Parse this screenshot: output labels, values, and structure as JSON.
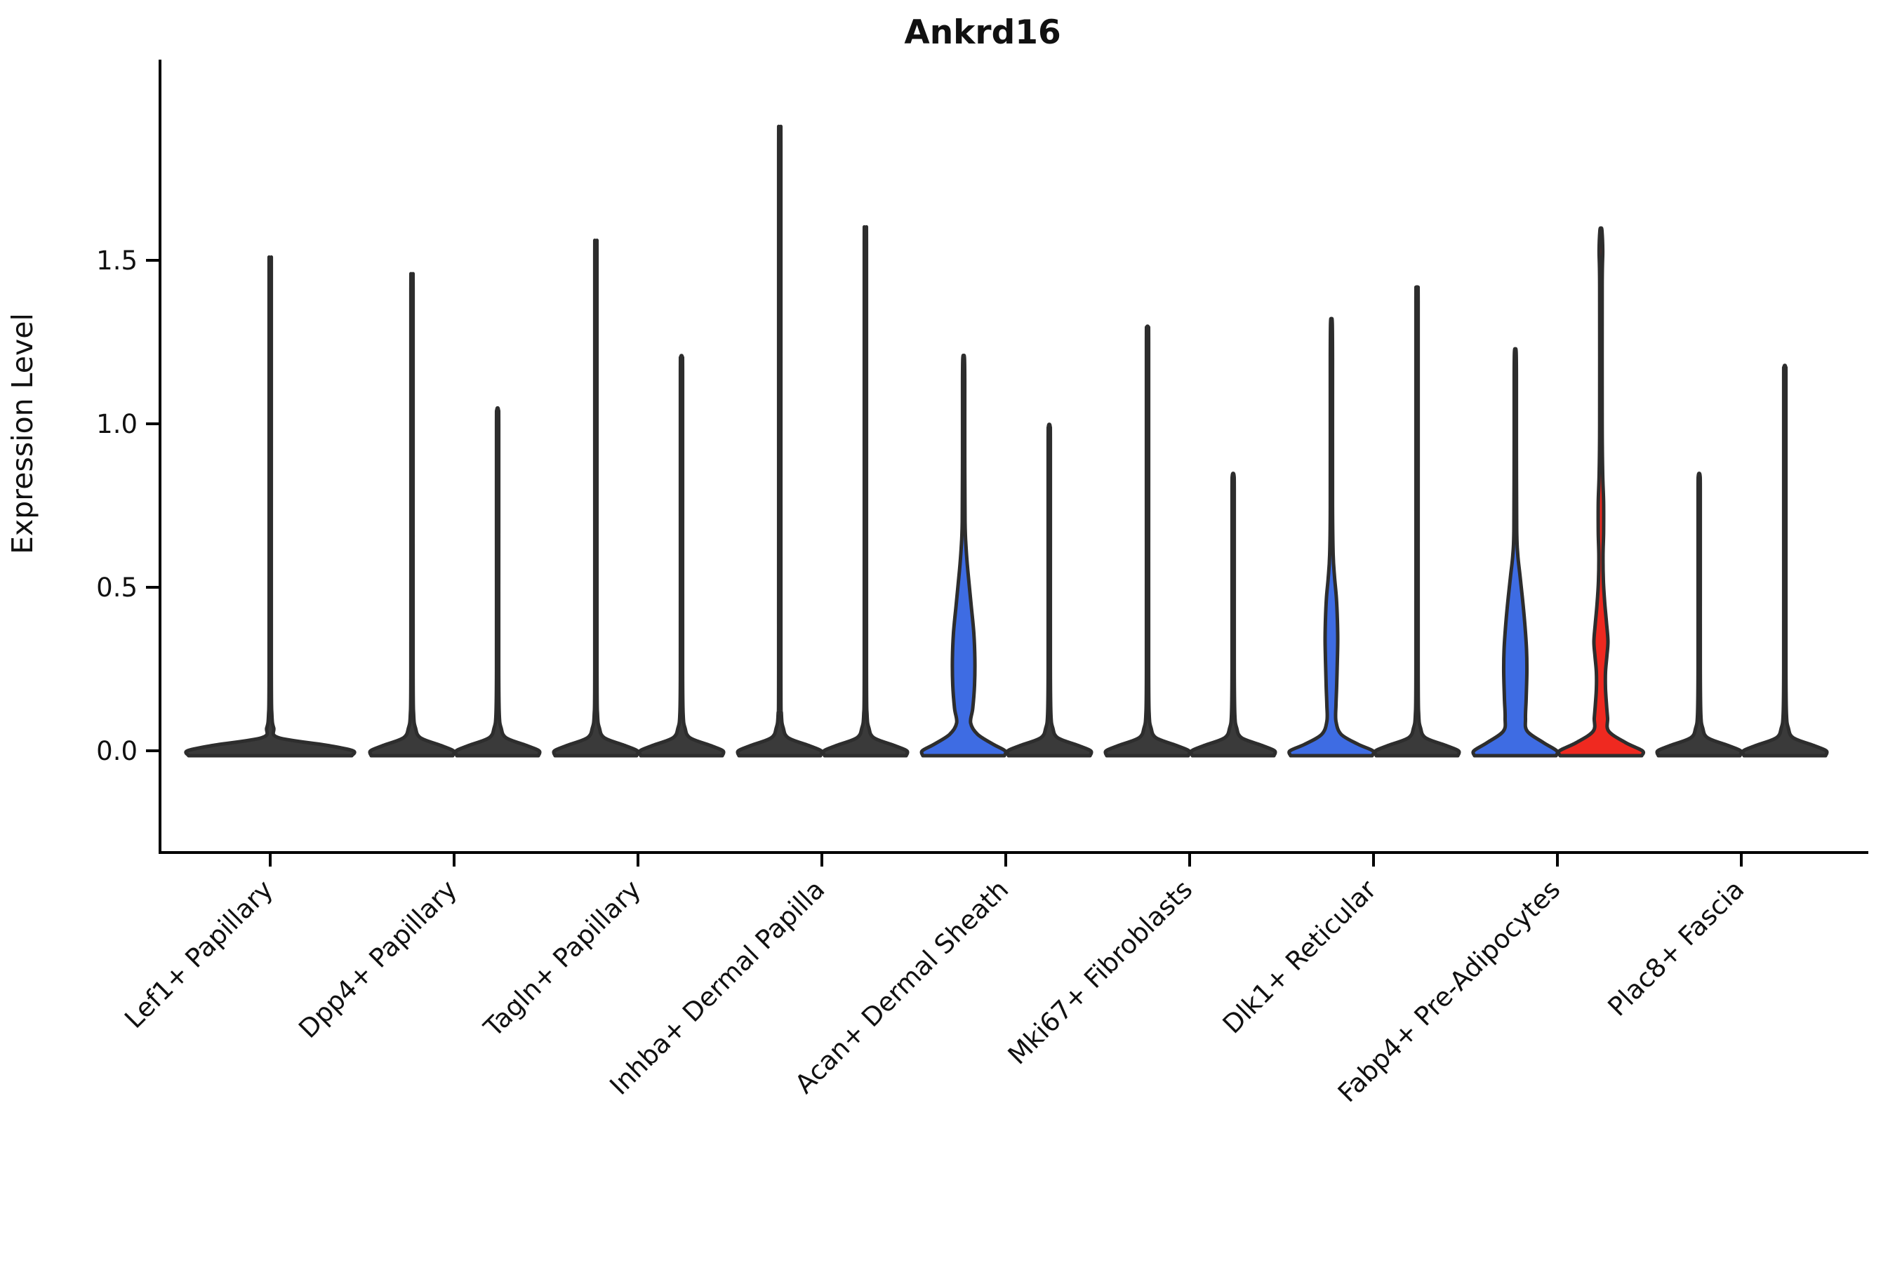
{
  "chart_data": {
    "type": "violin",
    "title": "Ankrd16",
    "xlabel": "",
    "ylabel": "Expression Level",
    "yticks": [
      0.0,
      0.5,
      1.0,
      1.5
    ],
    "ylim": [
      -0.31,
      2.11
    ],
    "grid": false,
    "legend": "none",
    "x_tick_rotation": 45,
    "categories": [
      "Lef1+ Papillary",
      "Dpp4+ Papillary",
      "Tagln+ Papillary",
      "Inhba+ Dermal Papilla",
      "Acan+ Dermal Sheath",
      "Mki67+ Fibroblasts",
      "Dlk1+ Reticular",
      "Fabp4+ Pre-Adipocytes",
      "Plac8+ Fascia"
    ],
    "colors": {
      "highlight_blue": "#3e6ce3",
      "highlight_red": "#ef2920",
      "violin_edge": "#2d2d2d",
      "violin_dark_fill": "#3a3a3a",
      "axis": "#000000"
    },
    "violins": [
      {
        "category": "Lef1+ Papillary",
        "side": "center",
        "fill": "dark",
        "max_expression": 1.5,
        "half_width": 118
      },
      {
        "category": "Dpp4+ Papillary",
        "side": "left",
        "fill": "dark",
        "max_expression": 1.45,
        "half_width": 59
      },
      {
        "category": "Dpp4+ Papillary",
        "side": "right",
        "fill": "dark",
        "max_expression": 1.04,
        "half_width": 59
      },
      {
        "category": "Tagln+ Papillary",
        "side": "left",
        "fill": "dark",
        "max_expression": 1.55,
        "half_width": 59
      },
      {
        "category": "Tagln+ Papillary",
        "side": "right",
        "fill": "dark",
        "max_expression": 1.2,
        "half_width": 59
      },
      {
        "category": "Inhba+ Dermal Papilla",
        "side": "left",
        "fill": "dark",
        "max_expression": 1.89,
        "half_width": 59
      },
      {
        "category": "Inhba+ Dermal Papilla",
        "side": "right",
        "fill": "dark",
        "max_expression": 1.59,
        "half_width": 59
      },
      {
        "category": "Acan+ Dermal Sheath",
        "side": "left",
        "fill": "blue",
        "max_expression": 1.2,
        "half_width": 59,
        "profile": [
          [
            0,
            59
          ],
          [
            0.02,
            42
          ],
          [
            0.05,
            20
          ],
          [
            0.085,
            10
          ],
          [
            0.13,
            13
          ],
          [
            0.2,
            15.5
          ],
          [
            0.28,
            16
          ],
          [
            0.36,
            14.5
          ],
          [
            0.45,
            10.5
          ],
          [
            0.55,
            6
          ],
          [
            0.62,
            3.5
          ],
          [
            0.7,
            2
          ],
          [
            0.9,
            1.6
          ],
          [
            1.13,
            1.6
          ],
          [
            1.2,
            1.2
          ]
        ]
      },
      {
        "category": "Acan+ Dermal Sheath",
        "side": "right",
        "fill": "dark",
        "max_expression": 0.99,
        "half_width": 59
      },
      {
        "category": "Mki67+ Fibroblasts",
        "side": "left",
        "fill": "dark",
        "max_expression": 1.29,
        "half_width": 59
      },
      {
        "category": "Mki67+ Fibroblasts",
        "side": "right",
        "fill": "dark",
        "max_expression": 0.84,
        "half_width": 59
      },
      {
        "category": "Dlk1+ Reticular",
        "side": "left",
        "fill": "blue",
        "max_expression": 1.31,
        "half_width": 59,
        "profile": [
          [
            0,
            59
          ],
          [
            0.02,
            38
          ],
          [
            0.05,
            14
          ],
          [
            0.09,
            6.5
          ],
          [
            0.14,
            6.5
          ],
          [
            0.2,
            7.5
          ],
          [
            0.28,
            8.5
          ],
          [
            0.34,
            9
          ],
          [
            0.4,
            8.5
          ],
          [
            0.47,
            7
          ],
          [
            0.53,
            4.5
          ],
          [
            0.6,
            2.5
          ],
          [
            0.75,
            1.6
          ],
          [
            1.2,
            1.6
          ],
          [
            1.31,
            1.2
          ]
        ]
      },
      {
        "category": "Dlk1+ Reticular",
        "side": "right",
        "fill": "dark",
        "max_expression": 1.41,
        "half_width": 59
      },
      {
        "category": "Fabp4+ Pre-Adipocytes",
        "side": "left",
        "fill": "blue",
        "max_expression": 1.22,
        "half_width": 59,
        "profile": [
          [
            0,
            59
          ],
          [
            0.025,
            40
          ],
          [
            0.06,
            17
          ],
          [
            0.1,
            14.5
          ],
          [
            0.16,
            15.5
          ],
          [
            0.24,
            16.5
          ],
          [
            0.31,
            16
          ],
          [
            0.39,
            13.5
          ],
          [
            0.47,
            10
          ],
          [
            0.54,
            6.5
          ],
          [
            0.6,
            3.5
          ],
          [
            0.68,
            2
          ],
          [
            0.95,
            1.6
          ],
          [
            1.15,
            1.6
          ],
          [
            1.22,
            1.2
          ]
        ]
      },
      {
        "category": "Fabp4+ Pre-Adipocytes",
        "side": "right",
        "fill": "red",
        "max_expression": 1.59,
        "half_width": 59,
        "profile": [
          [
            0,
            59
          ],
          [
            0.025,
            35
          ],
          [
            0.06,
            11
          ],
          [
            0.1,
            9.5
          ],
          [
            0.14,
            8
          ],
          [
            0.19,
            6.5
          ],
          [
            0.24,
            6.5
          ],
          [
            0.29,
            8.5
          ],
          [
            0.335,
            10
          ],
          [
            0.39,
            8
          ],
          [
            0.45,
            5.5
          ],
          [
            0.52,
            3.5
          ],
          [
            0.6,
            3
          ],
          [
            0.67,
            3.8
          ],
          [
            0.76,
            3.8
          ],
          [
            0.85,
            2.5
          ],
          [
            1.0,
            1.8
          ],
          [
            1.42,
            1.8
          ],
          [
            1.53,
            2.6
          ],
          [
            1.59,
            1.5
          ]
        ]
      },
      {
        "category": "Plac8+ Fascia",
        "side": "left",
        "fill": "dark",
        "max_expression": 0.84,
        "half_width": 59
      },
      {
        "category": "Plac8+ Fascia",
        "side": "right",
        "fill": "dark",
        "max_expression": 1.17,
        "half_width": 59
      }
    ]
  }
}
